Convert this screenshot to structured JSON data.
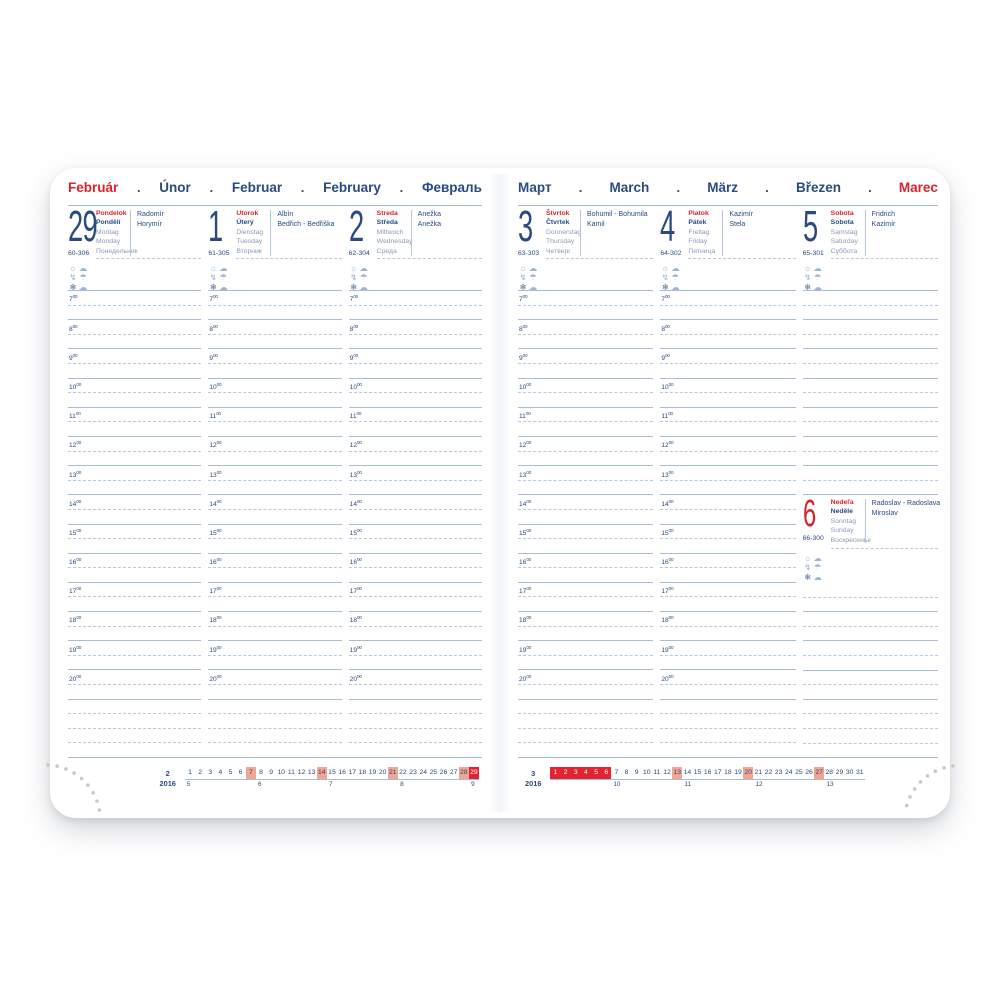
{
  "planner": {
    "hours": [
      "7",
      "8",
      "9",
      "10",
      "11",
      "12",
      "13",
      "14",
      "15",
      "16",
      "17",
      "18",
      "19",
      "20"
    ],
    "minute_sup": "00",
    "month_separator": ".",
    "colors": {
      "accent_red": "#d9232b",
      "navy_blue": "#2a4b80",
      "muted_blue": "#8a9cb8",
      "line_blue": "#a8bdd6",
      "sunday_salmon": "#f2a58f",
      "current_red": "#e32330",
      "perforation_gray": "#c8c8c8"
    },
    "weather_rows": [
      [
        {
          "name": "sun-icon",
          "glyph": "☼"
        },
        {
          "name": "sun-behind-cloud-icon",
          "glyph": "☁"
        }
      ],
      [
        {
          "name": "lightning-icon",
          "glyph": "↯"
        },
        {
          "name": "rain-cloud-icon",
          "glyph": "☂"
        }
      ],
      [
        {
          "name": "snowflake-icon",
          "glyph": "❄",
          "dark": true
        },
        {
          "name": "snow-cloud-icon",
          "glyph": "☁"
        }
      ]
    ],
    "left_page": {
      "months": [
        {
          "label": "Február",
          "highlight": true
        },
        {
          "label": "Únor"
        },
        {
          "label": "Februar"
        },
        {
          "label": "February"
        },
        {
          "label": "Февраль"
        }
      ],
      "day_columns": [
        {
          "number": "29",
          "day_of_year": "60-306",
          "names_day": [
            "Pondelok",
            "Pondělí",
            "Montag",
            "Monday",
            "Понедельник"
          ],
          "name_days": [
            "Radomír",
            "Horymír"
          ]
        },
        {
          "number": "1",
          "day_of_year": "61-305",
          "names_day": [
            "Utorok",
            "Úterý",
            "Dienstag",
            "Tuesday",
            "Вторник"
          ],
          "name_days": [
            "Albín",
            "Bedřich - Bedřiška"
          ]
        },
        {
          "number": "2",
          "day_of_year": "62-304",
          "names_day": [
            "Streda",
            "Středa",
            "Mittwoch",
            "Wednesday",
            "Среда"
          ],
          "name_days": [
            "Anežka",
            "Anežka"
          ]
        }
      ],
      "mini_calendar": {
        "month": "2",
        "year": "2016",
        "day_count": 29,
        "sunday_days": [
          7,
          14,
          21,
          28
        ],
        "highlight_days": [
          29
        ],
        "week_numbers": [
          {
            "week": "5",
            "under_day": 1
          },
          {
            "week": "6",
            "under_day": 8
          },
          {
            "week": "7",
            "under_day": 15
          },
          {
            "week": "8",
            "under_day": 22
          },
          {
            "week": "9",
            "under_day": 29
          }
        ]
      }
    },
    "right_page": {
      "months": [
        {
          "label": "Март"
        },
        {
          "label": "March"
        },
        {
          "label": "März"
        },
        {
          "label": "Březen"
        },
        {
          "label": "Marec",
          "highlight": true
        }
      ],
      "day_columns": [
        {
          "number": "3",
          "day_of_year": "63-303",
          "names_day": [
            "Štvrtok",
            "Čtvrtek",
            "Donnerstag",
            "Thursday",
            "Четверг"
          ],
          "name_days": [
            "Bohumil - Bohumila",
            "Kamil"
          ]
        },
        {
          "number": "4",
          "day_of_year": "64-302",
          "names_day": [
            "Piatok",
            "Pátek",
            "Freitag",
            "Friday",
            "Пятница"
          ],
          "name_days": [
            "Kazimír",
            "Stela"
          ]
        }
      ],
      "saturday": {
        "number": "5",
        "day_of_year": "65-301",
        "names_day": [
          "Sobota",
          "Sobota",
          "Samstag",
          "Saturday",
          "Суббота"
        ],
        "name_days": [
          "Fridrich",
          "Kazimír"
        ]
      },
      "sunday": {
        "number": "6",
        "day_of_year": "66-300",
        "names_day": [
          "Nedeľa",
          "Neděle",
          "Sonntag",
          "Sunday",
          "Воскресенье"
        ],
        "name_days": [
          "Radoslav - Radoslava",
          "Miroslav"
        ]
      },
      "mini_calendar": {
        "month": "3",
        "year": "2016",
        "day_count": 31,
        "sunday_days": [
          13,
          20,
          27
        ],
        "highlight_days": [
          1,
          2,
          3,
          4,
          5,
          6
        ],
        "week_numbers": [
          {
            "week": "10",
            "under_day": 7
          },
          {
            "week": "11",
            "under_day": 14
          },
          {
            "week": "12",
            "under_day": 21
          },
          {
            "week": "13",
            "under_day": 28
          }
        ]
      }
    }
  }
}
